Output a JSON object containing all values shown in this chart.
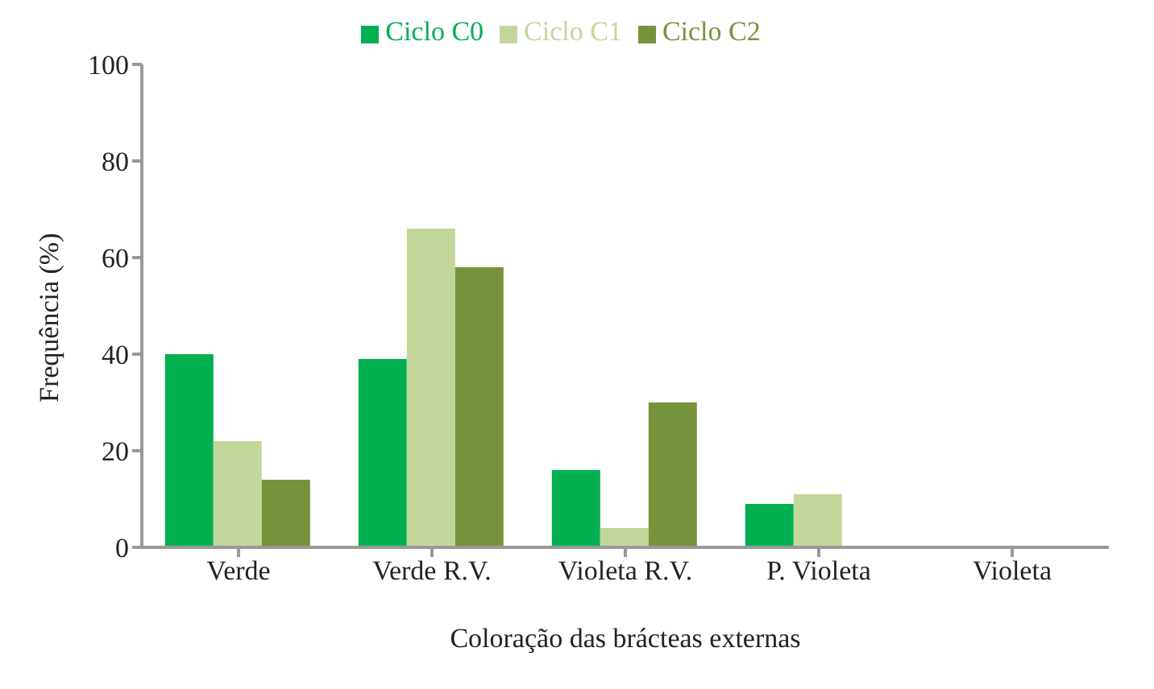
{
  "chart_data": {
    "type": "bar",
    "xlabel": "Coloração das brácteas externas",
    "ylabel": "Frequência (%)",
    "categories": [
      "Verde",
      "Verde R.V.",
      "Violeta R.V.",
      "P. Violeta",
      "Violeta"
    ],
    "series": [
      {
        "name": "Ciclo C0",
        "color": "#00b050",
        "values": [
          40,
          39,
          16,
          9,
          0
        ]
      },
      {
        "name": "Ciclo C1",
        "color": "#c4d79b",
        "values": [
          22,
          66,
          4,
          11,
          0
        ]
      },
      {
        "name": "Ciclo C2",
        "color": "#76933c",
        "values": [
          14,
          58,
          30,
          0,
          0
        ]
      }
    ],
    "ylim": [
      0,
      100
    ],
    "yticks": [
      0,
      20,
      40,
      60,
      80,
      100
    ],
    "grid": false,
    "legend": "top"
  }
}
